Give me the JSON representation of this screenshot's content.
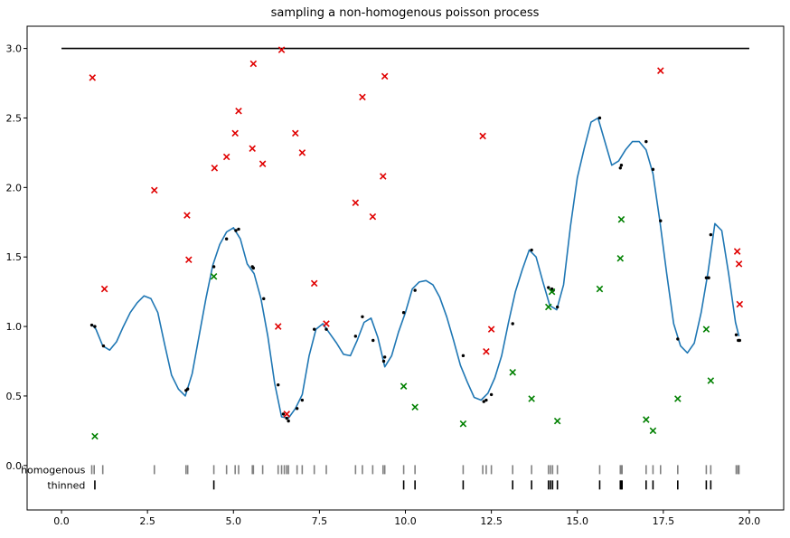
{
  "chart_data": {
    "type": "line",
    "title": "sampling a non-homogenous poisson process",
    "xlabel": "",
    "ylabel": "",
    "xlim": [
      -1.0,
      21.0
    ],
    "ylim": [
      -0.32,
      3.16
    ],
    "xticks": [
      0.0,
      2.5,
      5.0,
      7.5,
      10.0,
      12.5,
      15.0,
      17.5,
      20.0
    ],
    "xtick_labels": [
      "0.0",
      "2.5",
      "5.0",
      "7.5",
      "10.0",
      "12.5",
      "15.0",
      "17.5",
      "20.0"
    ],
    "yticks": [
      0.0,
      0.5,
      1.0,
      1.5,
      2.0,
      2.5,
      3.0
    ],
    "ytick_labels": [
      "0.0",
      "0.5",
      "1.0",
      "1.5",
      "2.0",
      "2.5",
      "3.0"
    ],
    "grid": false,
    "colors": {
      "upper_bound": "#000000",
      "intensity": "#1f77b4",
      "rejected": "#e00000",
      "accepted": "#008000",
      "homogenous_ticks": "#808080",
      "thinned_ticks": "#000000",
      "points": "#000000"
    },
    "upper_bound": {
      "x": [
        0.0,
        20.0
      ],
      "y": [
        3.0,
        3.0
      ]
    },
    "intensity": {
      "x": [
        0.9,
        1.0,
        1.2,
        1.4,
        1.6,
        1.8,
        2.0,
        2.2,
        2.4,
        2.6,
        2.8,
        3.0,
        3.2,
        3.4,
        3.6,
        3.7,
        3.8,
        4.0,
        4.2,
        4.4,
        4.6,
        4.8,
        5.0,
        5.2,
        5.4,
        5.6,
        5.8,
        6.0,
        6.2,
        6.4,
        6.6,
        6.8,
        7.0,
        7.2,
        7.4,
        7.6,
        7.8,
        8.0,
        8.2,
        8.4,
        8.6,
        8.8,
        9.0,
        9.2,
        9.4,
        9.6,
        9.8,
        10.0,
        10.2,
        10.4,
        10.6,
        10.8,
        11.0,
        11.2,
        11.4,
        11.6,
        11.8,
        12.0,
        12.2,
        12.4,
        12.6,
        12.8,
        13.0,
        13.2,
        13.4,
        13.6,
        13.8,
        14.0,
        14.2,
        14.4,
        14.6,
        14.8,
        15.0,
        15.2,
        15.4,
        15.6,
        15.8,
        16.0,
        16.2,
        16.4,
        16.6,
        16.8,
        17.0,
        17.2,
        17.4,
        17.6,
        17.8,
        18.0,
        18.2,
        18.4,
        18.6,
        18.8,
        19.0,
        19.2,
        19.4,
        19.6,
        19.7
      ],
      "y": [
        1.01,
        0.98,
        0.86,
        0.83,
        0.89,
        1.0,
        1.1,
        1.17,
        1.22,
        1.2,
        1.1,
        0.87,
        0.65,
        0.55,
        0.5,
        0.58,
        0.66,
        0.93,
        1.2,
        1.44,
        1.59,
        1.68,
        1.71,
        1.63,
        1.45,
        1.38,
        1.2,
        0.93,
        0.59,
        0.35,
        0.34,
        0.41,
        0.51,
        0.79,
        0.98,
        1.02,
        0.95,
        0.88,
        0.8,
        0.79,
        0.9,
        1.03,
        1.06,
        0.92,
        0.71,
        0.79,
        0.96,
        1.1,
        1.27,
        1.32,
        1.33,
        1.3,
        1.21,
        1.07,
        0.9,
        0.72,
        0.6,
        0.49,
        0.47,
        0.52,
        0.63,
        0.79,
        1.03,
        1.25,
        1.41,
        1.55,
        1.5,
        1.32,
        1.15,
        1.12,
        1.3,
        1.72,
        2.07,
        2.28,
        2.47,
        2.5,
        2.33,
        2.16,
        2.19,
        2.27,
        2.33,
        2.33,
        2.27,
        2.1,
        1.76,
        1.38,
        1.02,
        0.86,
        0.81,
        0.88,
        1.1,
        1.39,
        1.74,
        1.69,
        1.38,
        1.03,
        0.93
      ]
    },
    "intensity_points": {
      "x": [
        0.88,
        0.97,
        1.22,
        3.62,
        3.67,
        4.43,
        4.8,
        5.07,
        5.15,
        5.55,
        5.58,
        5.88,
        6.3,
        6.45,
        6.55,
        6.6,
        6.85,
        7.0,
        7.35,
        7.7,
        8.55,
        8.75,
        9.06,
        9.37,
        9.4,
        9.95,
        10.28,
        11.68,
        12.28,
        12.35,
        12.5,
        13.12,
        13.67,
        14.16,
        14.26,
        14.3,
        14.42,
        15.65,
        16.25,
        16.28,
        17.0,
        17.2,
        17.42,
        17.92,
        18.75,
        18.82,
        18.88,
        19.62,
        19.68,
        19.72
      ],
      "y": [
        1.01,
        1.0,
        0.86,
        0.54,
        0.55,
        1.43,
        1.63,
        1.69,
        1.7,
        1.43,
        1.42,
        1.2,
        0.58,
        0.37,
        0.34,
        0.32,
        0.41,
        0.47,
        0.98,
        0.98,
        0.93,
        1.07,
        0.9,
        0.75,
        0.78,
        1.1,
        1.26,
        0.79,
        0.46,
        0.47,
        0.51,
        1.02,
        1.55,
        1.28,
        1.27,
        1.26,
        1.14,
        2.5,
        2.14,
        2.16,
        2.33,
        2.13,
        1.76,
        0.91,
        1.35,
        1.35,
        1.66,
        0.94,
        0.9,
        0.9
      ]
    },
    "rejected": {
      "x": [
        0.9,
        1.25,
        2.7,
        3.65,
        3.7,
        4.45,
        4.8,
        5.05,
        5.15,
        5.55,
        5.58,
        5.85,
        6.3,
        6.4,
        6.55,
        6.8,
        7.0,
        7.35,
        7.7,
        8.55,
        8.75,
        9.05,
        9.35,
        9.4,
        12.25,
        12.35,
        12.5,
        17.42,
        19.65,
        19.7,
        19.72
      ],
      "y": [
        2.79,
        1.27,
        1.98,
        1.8,
        1.48,
        2.14,
        2.22,
        2.39,
        2.55,
        2.28,
        2.89,
        2.17,
        1.0,
        2.99,
        0.37,
        2.39,
        2.25,
        1.31,
        1.02,
        1.89,
        2.65,
        1.79,
        2.08,
        2.8,
        2.37,
        0.82,
        0.98,
        2.84,
        1.54,
        1.45,
        1.16
      ]
    },
    "accepted": {
      "x": [
        0.97,
        4.43,
        9.95,
        10.28,
        11.68,
        13.12,
        13.67,
        14.16,
        14.26,
        14.42,
        15.65,
        16.25,
        16.28,
        17.0,
        17.2,
        17.92,
        18.75,
        18.88
      ],
      "y": [
        0.21,
        1.36,
        0.57,
        0.42,
        0.3,
        0.67,
        0.48,
        1.14,
        1.25,
        0.32,
        1.27,
        1.49,
        1.77,
        0.33,
        0.25,
        0.48,
        0.98,
        0.61
      ]
    },
    "rug_rows": [
      {
        "label": "homogenous",
        "y": -0.03
      },
      {
        "label": "thinned",
        "y": -0.14
      }
    ],
    "homogenous_events": [
      0.88,
      0.95,
      1.2,
      2.7,
      3.62,
      3.67,
      4.43,
      4.8,
      5.05,
      5.15,
      5.55,
      5.58,
      5.85,
      6.3,
      6.4,
      6.48,
      6.55,
      6.6,
      6.85,
      7.0,
      7.35,
      7.7,
      8.55,
      8.75,
      9.05,
      9.35,
      9.4,
      9.95,
      10.28,
      11.68,
      12.25,
      12.35,
      12.5,
      13.12,
      13.67,
      14.16,
      14.22,
      14.28,
      14.42,
      15.65,
      16.25,
      16.28,
      16.3,
      17.0,
      17.2,
      17.42,
      17.92,
      18.75,
      18.88,
      19.62,
      19.67,
      19.7
    ],
    "thinned_events": [
      0.97,
      4.43,
      9.95,
      10.28,
      11.68,
      13.12,
      13.67,
      14.16,
      14.22,
      14.28,
      14.42,
      15.65,
      16.25,
      16.28,
      16.3,
      17.0,
      17.2,
      17.92,
      18.75,
      18.88
    ]
  }
}
